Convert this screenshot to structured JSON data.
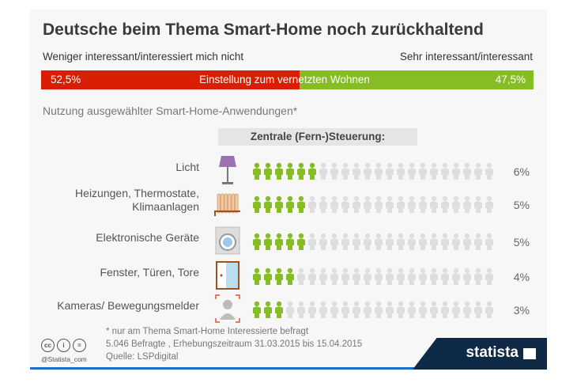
{
  "title": "Deutsche beim Thema Smart-Home noch zurückhaltend",
  "label_left": "Weniger interessant/interessiert mich nicht",
  "label_right": "Sehr interessant/interessant",
  "bar": {
    "center": "Einstellung zum vernetzten Wohnen",
    "left_value": "52,5%",
    "right_value": "47,5%",
    "left_share": 52.5,
    "right_share": 47.5,
    "left_color": "#d81e05",
    "right_color": "#86bc24"
  },
  "subtitle": "Nutzung ausgewählter Smart-Home-Anwendungen*",
  "section_header": "Zentrale (Fern-)Steuerung:",
  "chart_data": {
    "type": "bar",
    "title": "Nutzung ausgewählter Smart-Home-Anwendungen",
    "categories": [
      "Licht",
      "Heizungen, Thermostate, Klimaanlagen",
      "Elektronische Geräte",
      "Fenster, Türen, Tore",
      "Kameras/ Bewegungsmelder"
    ],
    "values": [
      6,
      5,
      5,
      4,
      3
    ],
    "labels": [
      "6%",
      "5%",
      "5%",
      "4%",
      "3%"
    ],
    "unit": "%"
  },
  "rows": [
    {
      "label": "Licht",
      "icon": "lamp-icon",
      "pct": "6%",
      "n": 6
    },
    {
      "label": "Heizungen, Thermostate, Klimaanlagen",
      "icon": "radiator-icon",
      "pct": "5%",
      "n": 5
    },
    {
      "label": "Elektronische Geräte",
      "icon": "washing-machine-icon",
      "pct": "5%",
      "n": 5
    },
    {
      "label": "Fenster, Türen, Tore",
      "icon": "window-icon",
      "pct": "4%",
      "n": 4
    },
    {
      "label": "Kameras/ Bewegungsmelder",
      "icon": "camera-person-icon",
      "pct": "3%",
      "n": 3
    }
  ],
  "footer": {
    "note": "* nur am Thema Smart-Home Interessierte befragt",
    "survey": "5.046 Befragte , Erhebungszeitraum 31.03.2015 bis 15.04.2015",
    "source": "Quelle: LSPdigital",
    "handle": "@Statista_com",
    "brand": "statista"
  },
  "icons": {
    "cc": "cc",
    "by": "i",
    "nd": "="
  }
}
